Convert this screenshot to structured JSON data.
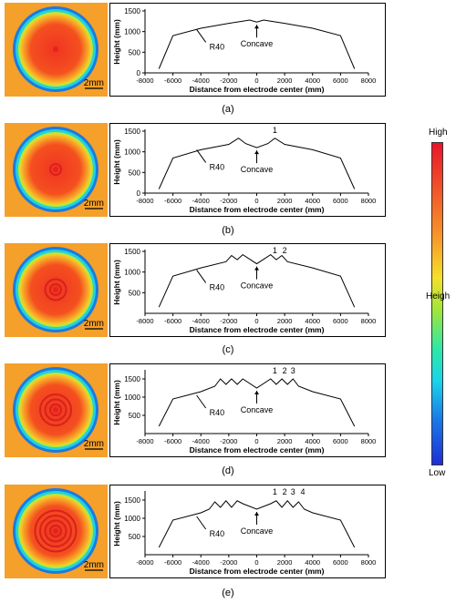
{
  "scale_bar": "2mm",
  "colorbar": {
    "top_label": "High",
    "mid_label": "Heigh",
    "bottom_label": "Low"
  },
  "panel_labels": [
    "(a)",
    "(b)",
    "(c)",
    "(d)",
    "(e)"
  ],
  "chart_data": [
    {
      "type": "line",
      "xlabel": "Distance from electrode center (mm)",
      "ylabel": "Height (mm)",
      "xlim": [
        -8000,
        8000
      ],
      "ylim": [
        0,
        1500
      ],
      "xticks": [
        -8000,
        -6000,
        -4000,
        -2000,
        0,
        2000,
        4000,
        6000,
        8000
      ],
      "yticks": [
        0,
        500,
        1000,
        1500
      ],
      "annotations": [
        "R40",
        "Concave"
      ],
      "x": [
        -7000,
        -6000,
        -4000,
        -2000,
        -1000,
        -500,
        0,
        500,
        1000,
        2000,
        4000,
        6000,
        7000
      ],
      "y": [
        100,
        900,
        1080,
        1200,
        1250,
        1280,
        1230,
        1280,
        1250,
        1200,
        1080,
        900,
        100
      ]
    },
    {
      "type": "line",
      "xlabel": "Distance from electrode center (mm)",
      "ylabel": "Height (mm)",
      "xlim": [
        -8000,
        8000
      ],
      "ylim": [
        0,
        1500
      ],
      "xticks": [
        -8000,
        -6000,
        -4000,
        -2000,
        0,
        2000,
        4000,
        6000,
        8000
      ],
      "yticks": [
        0,
        500,
        1000,
        1500
      ],
      "annotations": [
        "R40",
        "Concave",
        "1"
      ],
      "x": [
        -7000,
        -6000,
        -4000,
        -2000,
        -1300,
        -800,
        0,
        800,
        1300,
        2000,
        4000,
        6000,
        7000
      ],
      "y": [
        100,
        850,
        1050,
        1180,
        1330,
        1200,
        1100,
        1200,
        1330,
        1180,
        1050,
        850,
        100
      ]
    },
    {
      "type": "line",
      "xlabel": "Distance from electrode center (mm)",
      "ylabel": "Height (mm)",
      "xlim": [
        -8000,
        8000
      ],
      "ylim": [
        0,
        1500
      ],
      "xticks": [
        -8000,
        -6000,
        -4000,
        -2000,
        0,
        2000,
        4000,
        6000,
        8000
      ],
      "yticks": [
        500,
        1000,
        1500
      ],
      "annotations": [
        "R40",
        "Concave",
        "1",
        "2"
      ],
      "x": [
        -7000,
        -6000,
        -4000,
        -2200,
        -1800,
        -1400,
        -1000,
        0,
        1000,
        1400,
        1800,
        2200,
        4000,
        6000,
        7000
      ],
      "y": [
        150,
        900,
        1100,
        1250,
        1400,
        1300,
        1420,
        1200,
        1420,
        1300,
        1400,
        1250,
        1100,
        900,
        150
      ]
    },
    {
      "type": "line",
      "xlabel": "Distance from electrode center (mm)",
      "ylabel": "Height (mm)",
      "xlim": [
        -8000,
        8000
      ],
      "ylim": [
        0,
        1700
      ],
      "xticks": [
        -8000,
        -6000,
        -4000,
        -2000,
        0,
        2000,
        4000,
        6000,
        8000
      ],
      "yticks": [
        500,
        1000,
        1500
      ],
      "annotations": [
        "R40",
        "Concave",
        "1",
        "2",
        "3"
      ],
      "x": [
        -7000,
        -6000,
        -4000,
        -3000,
        -2600,
        -2200,
        -1800,
        -1400,
        -1000,
        0,
        1000,
        1400,
        1800,
        2200,
        2600,
        3000,
        4000,
        6000,
        7000
      ],
      "y": [
        200,
        950,
        1150,
        1300,
        1500,
        1350,
        1500,
        1350,
        1500,
        1250,
        1500,
        1350,
        1500,
        1350,
        1500,
        1300,
        1150,
        950,
        200
      ]
    },
    {
      "type": "line",
      "xlabel": "Distance from electrode center (mm)",
      "ylabel": "Height (mm)",
      "xlim": [
        -8000,
        8000
      ],
      "ylim": [
        0,
        1700
      ],
      "xticks": [
        -8000,
        -6000,
        -4000,
        -2000,
        0,
        2000,
        4000,
        6000,
        8000
      ],
      "yticks": [
        500,
        1000,
        1500
      ],
      "annotations": [
        "R40",
        "Concave",
        "1",
        "2",
        "3",
        "4"
      ],
      "x": [
        -7000,
        -6000,
        -4000,
        -3400,
        -3000,
        -2600,
        -2200,
        -1800,
        -1400,
        -1000,
        0,
        1000,
        1400,
        1800,
        2200,
        2600,
        3000,
        3400,
        4000,
        6000,
        7000
      ],
      "y": [
        200,
        950,
        1150,
        1250,
        1450,
        1300,
        1480,
        1300,
        1480,
        1400,
        1250,
        1400,
        1480,
        1300,
        1480,
        1300,
        1450,
        1250,
        1150,
        950,
        200
      ]
    }
  ]
}
